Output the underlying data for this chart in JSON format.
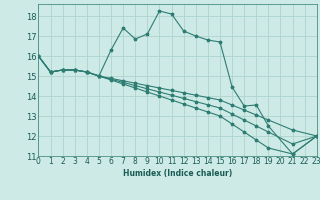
{
  "title": "",
  "xlabel": "Humidex (Indice chaleur)",
  "ylabel": "",
  "background_color": "#cdeae6",
  "grid_color": "#add4cf",
  "line_color": "#2e7d72",
  "xlim": [
    0,
    23
  ],
  "ylim": [
    11,
    18.6
  ],
  "yticks": [
    11,
    12,
    13,
    14,
    15,
    16,
    17,
    18
  ],
  "xticks": [
    0,
    1,
    2,
    3,
    4,
    5,
    6,
    7,
    8,
    9,
    10,
    11,
    12,
    13,
    14,
    15,
    16,
    17,
    18,
    19,
    20,
    21,
    22,
    23
  ],
  "series1_x": [
    0,
    1,
    2,
    3,
    4,
    5,
    6,
    7,
    8,
    9,
    10,
    11,
    12,
    13,
    14,
    15,
    16,
    17,
    18,
    19,
    21,
    23
  ],
  "series1_y": [
    16.0,
    15.2,
    15.3,
    15.3,
    15.2,
    15.0,
    16.3,
    17.4,
    16.85,
    17.1,
    18.25,
    18.1,
    17.25,
    17.0,
    16.8,
    16.7,
    14.45,
    13.5,
    13.55,
    12.5,
    11.1,
    12.0
  ],
  "series2_x": [
    0,
    1,
    2,
    3,
    4,
    5,
    6,
    7,
    8,
    9,
    10,
    11,
    12,
    13,
    14,
    15,
    16,
    17,
    18,
    19,
    21,
    23
  ],
  "series2_y": [
    16.0,
    15.2,
    15.3,
    15.3,
    15.2,
    15.0,
    14.88,
    14.76,
    14.64,
    14.52,
    14.4,
    14.28,
    14.16,
    14.04,
    13.92,
    13.8,
    13.55,
    13.3,
    13.05,
    12.8,
    12.3,
    12.0
  ],
  "series3_x": [
    0,
    1,
    2,
    3,
    4,
    5,
    6,
    7,
    8,
    9,
    10,
    11,
    12,
    13,
    14,
    15,
    16,
    17,
    18,
    19,
    21,
    23
  ],
  "series3_y": [
    16.0,
    15.2,
    15.3,
    15.3,
    15.2,
    15.0,
    14.84,
    14.68,
    14.52,
    14.36,
    14.2,
    14.04,
    13.88,
    13.72,
    13.56,
    13.4,
    13.1,
    12.8,
    12.5,
    12.2,
    11.6,
    12.0
  ],
  "series4_x": [
    0,
    1,
    2,
    3,
    4,
    5,
    6,
    7,
    8,
    9,
    10,
    11,
    12,
    13,
    14,
    15,
    16,
    17,
    18,
    19,
    21,
    23
  ],
  "series4_y": [
    16.0,
    15.2,
    15.3,
    15.3,
    15.2,
    15.0,
    14.8,
    14.6,
    14.4,
    14.2,
    14.0,
    13.8,
    13.6,
    13.4,
    13.2,
    13.0,
    12.6,
    12.2,
    11.8,
    11.4,
    11.1,
    12.0
  ],
  "marker_size": 2.5,
  "line_width": 0.8,
  "xlabel_fontsize": 5.5,
  "tick_fontsize": 5.5
}
